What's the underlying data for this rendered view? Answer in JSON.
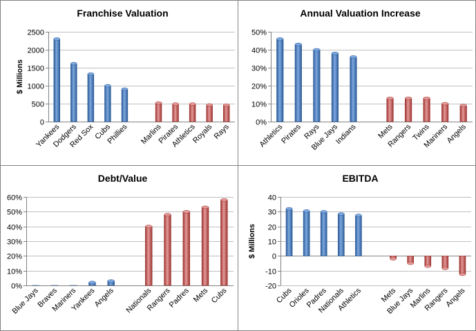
{
  "colors": {
    "blue_dark": "#2a5a96",
    "blue_light": "#7ea8e0",
    "red_dark": "#9c3432",
    "red_light": "#e59a98",
    "border": "#808080"
  },
  "chart_data": [
    {
      "type": "bar",
      "title": "Franchise Valuation",
      "ylabel": "$ Millions",
      "ylim": [
        0,
        2500
      ],
      "ytick_labels": [
        "0",
        "500",
        "1000",
        "1500",
        "2000",
        "2500"
      ],
      "categories": [
        "Yankees",
        "Dodgers",
        "Red Sox",
        "Cubs",
        "Phillies",
        "",
        "Marlins",
        "Pirates",
        "Athletics",
        "Royals",
        "Rays"
      ],
      "values": [
        2300,
        1615,
        1325,
        1000,
        905,
        null,
        520,
        490,
        490,
        465,
        460
      ],
      "bar_colors": [
        "blue",
        "blue",
        "blue",
        "blue",
        "blue",
        null,
        "red",
        "red",
        "red",
        "red",
        "red"
      ],
      "grid": true,
      "legend": "none"
    },
    {
      "type": "bar",
      "title": "Annual Valuation Increase",
      "ylabel": "",
      "ylim": [
        0,
        50
      ],
      "ytick_labels": [
        "0%",
        "10%",
        "20%",
        "30%",
        "40%",
        "50%"
      ],
      "categories": [
        "Athletics",
        "Pirates",
        "Rays",
        "Blue Jays",
        "Indians",
        "",
        "Mets",
        "Rangers",
        "Twins",
        "Mariners",
        "Angels"
      ],
      "values": [
        46,
        43,
        40,
        38,
        36,
        null,
        13,
        13,
        13,
        10,
        9
      ],
      "bar_colors": [
        "blue",
        "blue",
        "blue",
        "blue",
        "blue",
        null,
        "red",
        "red",
        "red",
        "red",
        "red"
      ],
      "grid": true,
      "legend": "none"
    },
    {
      "type": "bar",
      "title": "Debt/Value",
      "ylabel": "",
      "ylim": [
        0,
        60
      ],
      "ytick_labels": [
        "0%",
        "10%",
        "20%",
        "30%",
        "40%",
        "50%",
        "60%"
      ],
      "categories": [
        "Blue Jays",
        "Braves",
        "Mariners",
        "Yankees",
        "Angels",
        "",
        "Nationals",
        "Rangers",
        "Padres",
        "Mets",
        "Cubs"
      ],
      "values": [
        0,
        0,
        0,
        2,
        3,
        null,
        40,
        48,
        50,
        53,
        58
      ],
      "bar_colors": [
        "blue",
        "blue",
        "blue",
        "blue",
        "blue",
        null,
        "red",
        "red",
        "red",
        "red",
        "red"
      ],
      "grid": true,
      "legend": "none"
    },
    {
      "type": "bar",
      "title": "EBITDA",
      "ylabel": "$ Millions",
      "ylim": [
        -20,
        40
      ],
      "ytick_labels": [
        "-20",
        "-10",
        "0",
        "10",
        "20",
        "30",
        "40"
      ],
      "categories": [
        "Cubs",
        "Orioles",
        "Padres",
        "Nationals",
        "Athletics",
        "",
        "Mets",
        "Blue Jays",
        "Marlins",
        "Rangers",
        "Angels"
      ],
      "values": [
        32,
        30.5,
        30,
        28.5,
        27.5,
        null,
        -2,
        -5,
        -7,
        -8.5,
        -12.5
      ],
      "bar_colors": [
        "blue",
        "blue",
        "blue",
        "blue",
        "blue",
        null,
        "red",
        "red",
        "red",
        "red",
        "red"
      ],
      "grid": true,
      "legend": "none"
    }
  ]
}
